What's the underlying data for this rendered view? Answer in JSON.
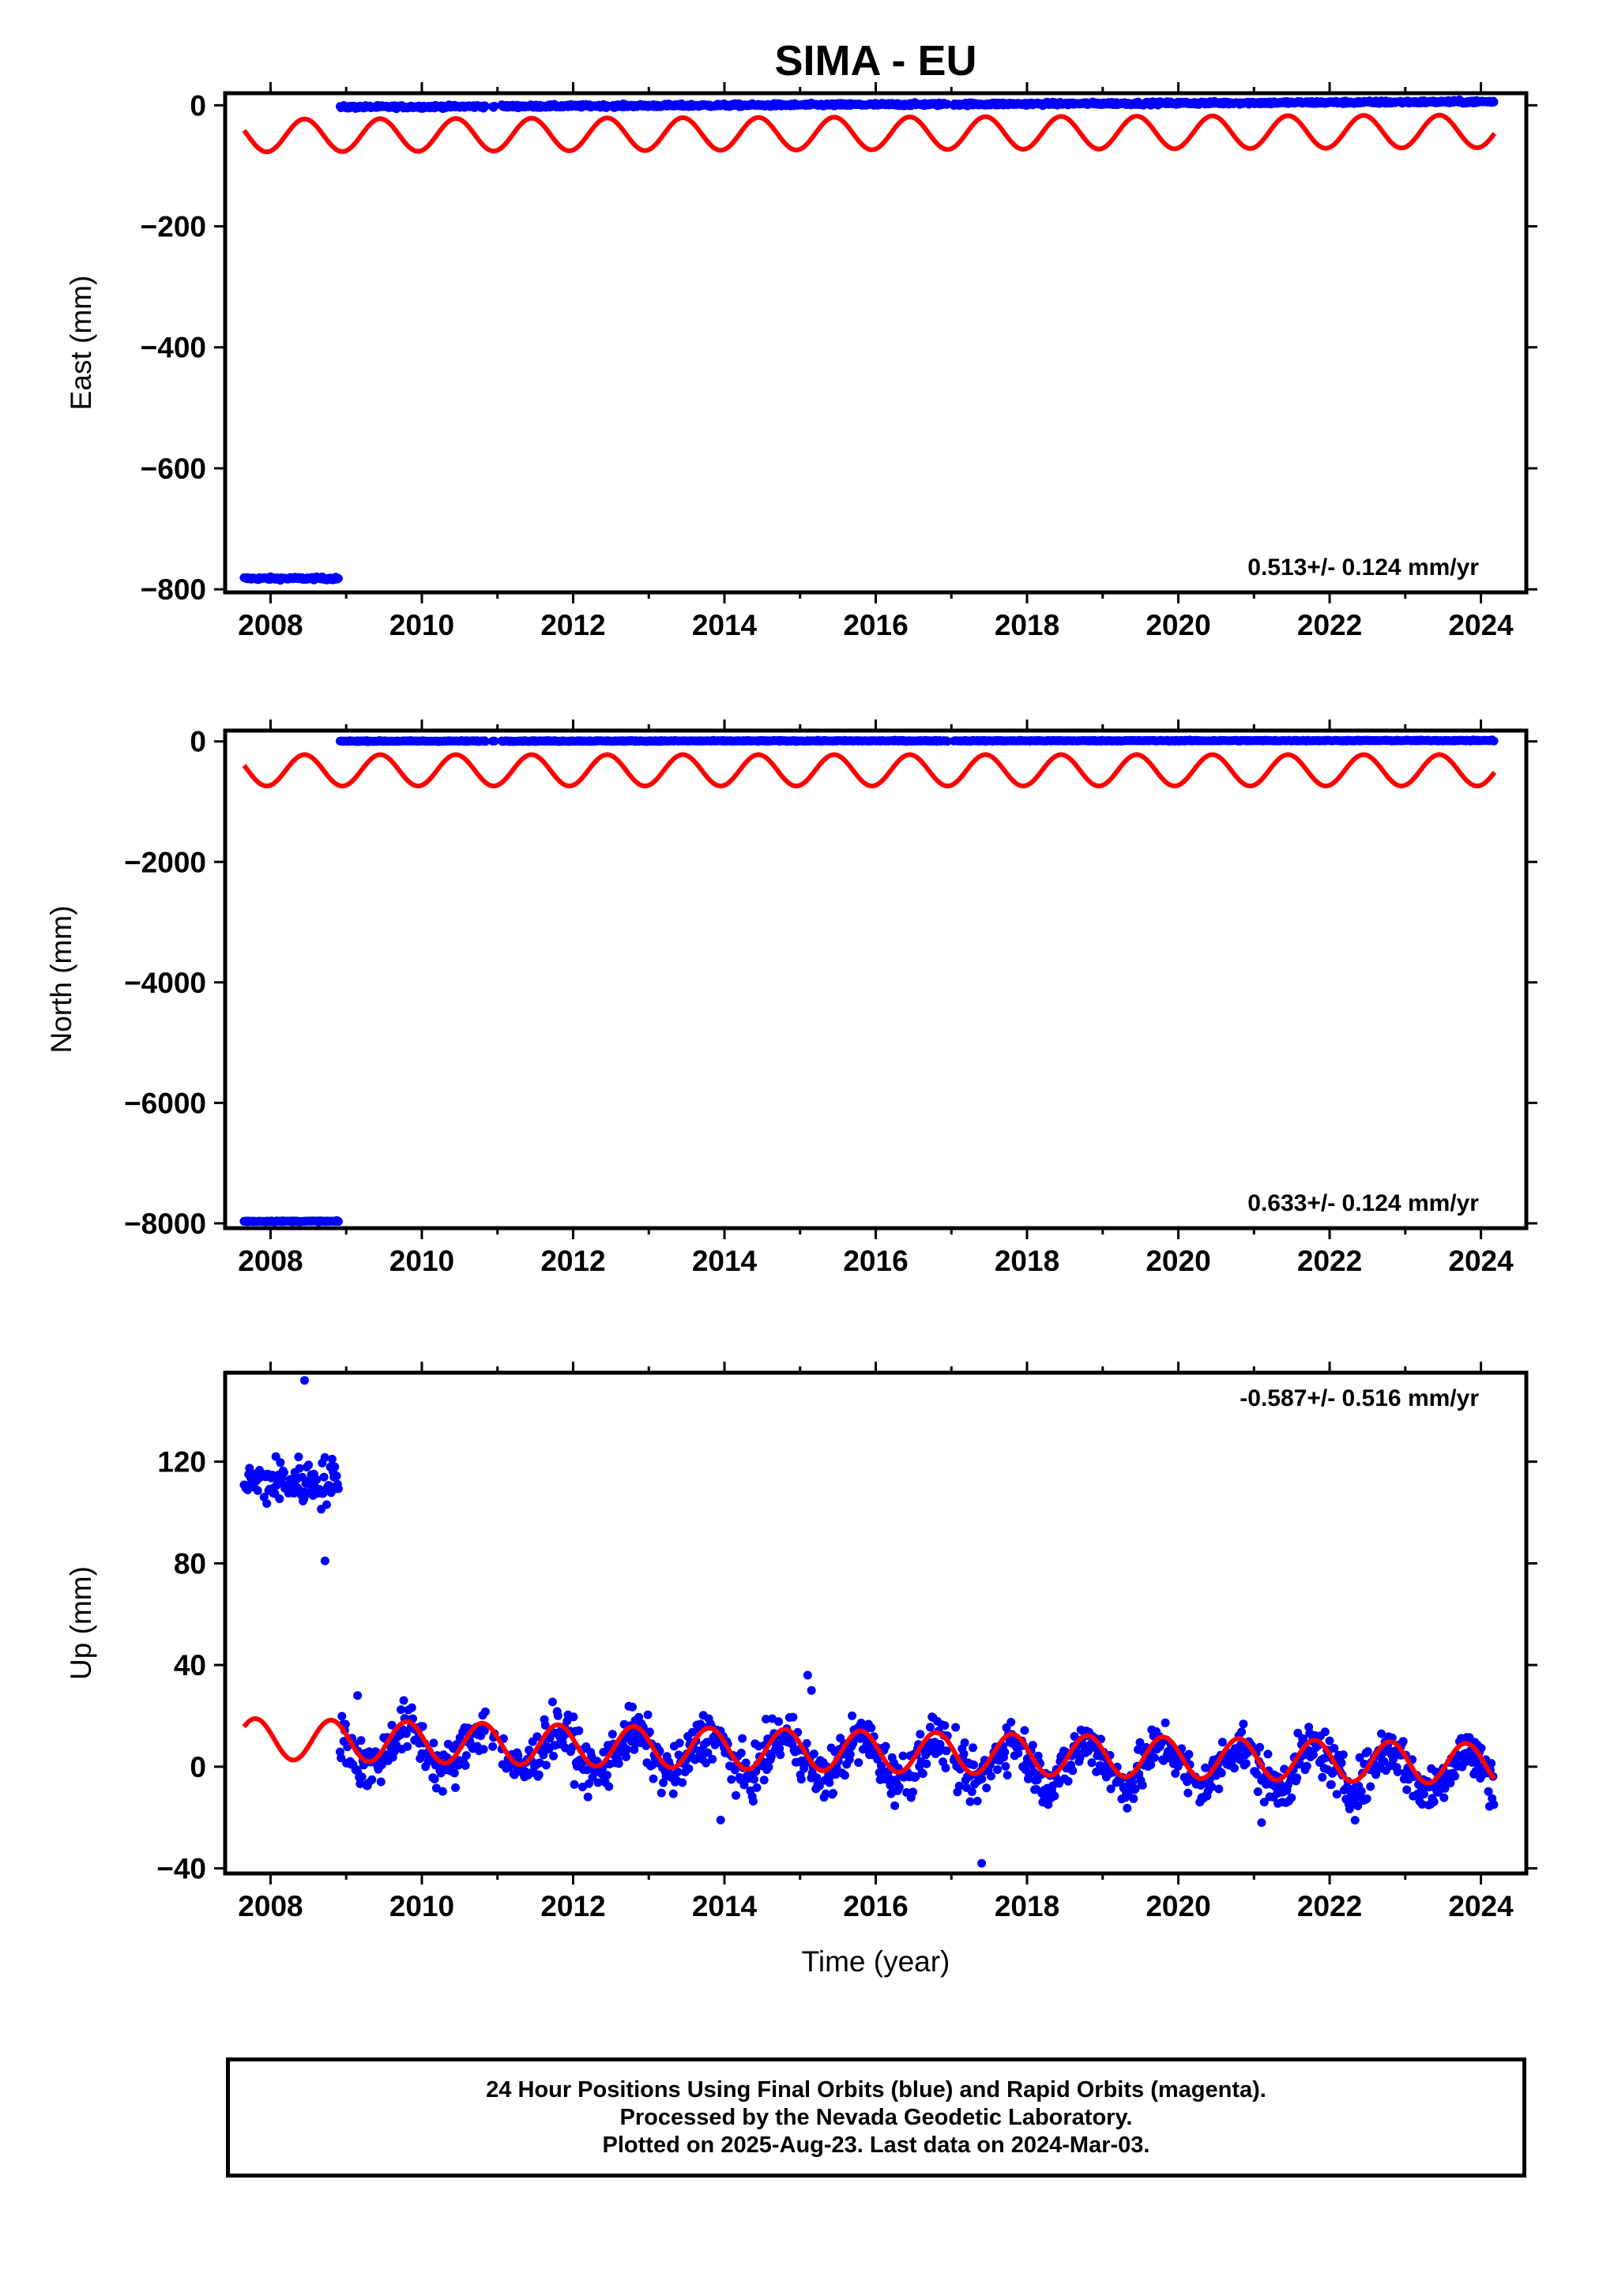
{
  "title": "SIMA - EU",
  "colors": {
    "final_orbits": "#0000ff",
    "model_fit": "#ff0000",
    "axis": "#000000",
    "background": "#ffffff"
  },
  "chart_data": [
    {
      "type": "scatter",
      "title": "SIMA - EU",
      "xlabel": "",
      "ylabel": "East (mm)",
      "xlim": [
        2007.4,
        2024.6
      ],
      "ylim": [
        -805,
        20
      ],
      "xticks": [
        "2008",
        "2010",
        "2012",
        "2014",
        "2016",
        "2018",
        "2020",
        "2022",
        "2024"
      ],
      "yticks": [
        "0",
        "-200",
        "-400",
        "-600",
        "-800"
      ],
      "ytick_values": [
        0,
        -200,
        -400,
        -600,
        -800
      ],
      "annotation": "0.513+/- 0.124 mm/yr",
      "annotation_position": "bottom-right",
      "grid": false,
      "series": [
        {
          "role": "final orbits (blue)",
          "segments": [
            {
              "start": 2007.65,
              "end": 2008.9,
              "level": -782
            },
            {
              "start": 2008.92,
              "end": 2024.18,
              "level_start": -3,
              "level_end": 6
            }
          ],
          "noise_mm": 3
        },
        {
          "role": "seasonal model (red)",
          "start": 2007.65,
          "end": 2024.18,
          "mean_start": -50,
          "mean_end": -43,
          "amplitude": 27,
          "period_years": 1.0,
          "phase_year": 2008.45
        }
      ]
    },
    {
      "type": "scatter",
      "title": "",
      "xlabel": "",
      "ylabel": "North (mm)",
      "xlim": [
        2007.4,
        2024.6
      ],
      "ylim": [
        -8080,
        180
      ],
      "xticks": [
        "2008",
        "2010",
        "2012",
        "2014",
        "2016",
        "2018",
        "2020",
        "2022",
        "2024"
      ],
      "yticks": [
        "0",
        "-2000",
        "-4000",
        "-6000",
        "-8000"
      ],
      "ytick_values": [
        0,
        -2000,
        -4000,
        -6000,
        -8000
      ],
      "annotation": "0.633+/- 0.124 mm/yr",
      "annotation_position": "bottom-right",
      "grid": false,
      "series": [
        {
          "role": "final orbits (blue)",
          "segments": [
            {
              "start": 2007.65,
              "end": 2008.9,
              "level": -7965
            },
            {
              "start": 2008.92,
              "end": 2024.18,
              "level_start": 5,
              "level_end": 15
            }
          ],
          "noise_mm": 10
        },
        {
          "role": "seasonal model (red)",
          "start": 2007.65,
          "end": 2024.18,
          "mean_start": -480,
          "mean_end": -480,
          "amplitude": 260,
          "period_years": 1.0,
          "phase_year": 2008.45
        }
      ]
    },
    {
      "type": "scatter",
      "title": "",
      "xlabel": "Time (year)",
      "ylabel": "Up (mm)",
      "xlim": [
        2007.4,
        2024.6
      ],
      "ylim": [
        -42,
        155
      ],
      "xticks": [
        "2008",
        "2010",
        "2012",
        "2014",
        "2016",
        "2018",
        "2020",
        "2022",
        "2024"
      ],
      "yticks": [
        "120",
        "80",
        "40",
        "0",
        "-40"
      ],
      "ytick_values": [
        120,
        80,
        40,
        0,
        -40
      ],
      "annotation": "-0.587+/- 0.516 mm/yr",
      "annotation_position": "top-right",
      "grid": false,
      "series": [
        {
          "role": "final orbits (blue)",
          "segments": [
            {
              "start": 2007.65,
              "end": 2008.9,
              "level": 112
            },
            {
              "start": 2008.92,
              "end": 2024.18,
              "level_start": 8,
              "level_end": -2
            }
          ],
          "noise_mm": 7,
          "outliers": [
            {
              "x": 2008.45,
              "y": 152
            },
            {
              "x": 2008.72,
              "y": 81
            },
            {
              "x": 2015.1,
              "y": 36
            },
            {
              "x": 2015.15,
              "y": 30
            },
            {
              "x": 2017.4,
              "y": -38
            },
            {
              "x": 2009.15,
              "y": 28
            },
            {
              "x": 2013.95,
              "y": -21
            },
            {
              "x": 2021.1,
              "y": -22
            }
          ]
        },
        {
          "role": "seasonal model (red)",
          "start": 2007.65,
          "end": 2024.18,
          "mean_start": 11,
          "mean_end": 1,
          "amplitude": 8,
          "period_years": 1.0,
          "phase_year": 2007.8
        }
      ]
    }
  ],
  "footer": {
    "line1": "24 Hour Positions Using Final Orbits (blue) and Rapid Orbits (magenta).",
    "line2": "Processed by the Nevada Geodetic Laboratory.",
    "line3": "Plotted on 2025-Aug-23. Last data on 2024-Mar-03."
  }
}
